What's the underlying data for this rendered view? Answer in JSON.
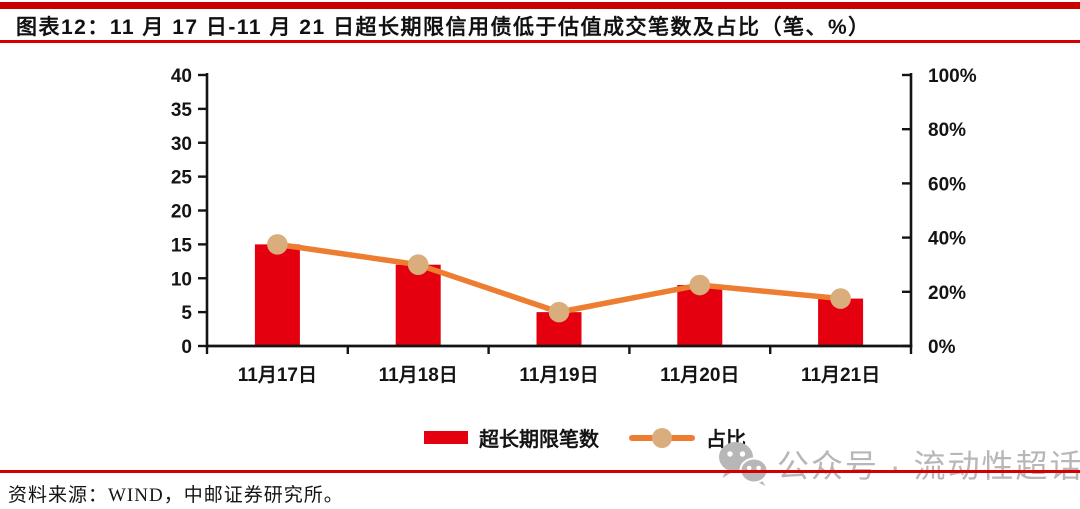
{
  "header": {
    "title": "图表12：11 月 17 日-11 月 21 日超长期限信用债低于估值成交笔数及占比（笔、%）"
  },
  "chart_data": {
    "type": "bar",
    "subtype": "combo-bar-line-dual-axis",
    "title": "11月17日-11月21日超长期限信用债低于估值成交笔数及占比（笔、%）",
    "categories": [
      "11月17日",
      "11月18日",
      "11月19日",
      "11月20日",
      "11月21日"
    ],
    "series": [
      {
        "name": "超长期限笔数",
        "type": "bar",
        "axis": "left",
        "color": "#e4000f",
        "values": [
          15,
          12,
          5,
          9,
          7
        ]
      },
      {
        "name": "占比",
        "type": "line",
        "axis": "right",
        "color": "#ed7d31",
        "marker_color": "#d9ae7c",
        "values": [
          37.5,
          30,
          12.5,
          22.5,
          17.5
        ]
      }
    ],
    "left_axis": {
      "min": 0,
      "max": 40,
      "step": 5,
      "tick_labels": [
        "0",
        "5",
        "10",
        "15",
        "20",
        "25",
        "30",
        "35",
        "40"
      ]
    },
    "right_axis": {
      "min": 0,
      "max": 100,
      "step": 20,
      "tick_labels": [
        "0%",
        "20%",
        "40%",
        "60%",
        "80%",
        "100%"
      ]
    },
    "grid": false,
    "legend_position": "bottom"
  },
  "watermark": {
    "icon": "wechat-icon",
    "text": "公众号 · 流动性超话"
  },
  "footer": {
    "source": "资料来源：WIND，中邮证券研究所。"
  },
  "colors": {
    "rule_red": "#c80000",
    "bar_red": "#e4000f",
    "line_orange": "#ed7d31",
    "marker_tan": "#d9ae7c",
    "axis_black": "#141414",
    "watermark_gray": "#b7b7b7"
  }
}
